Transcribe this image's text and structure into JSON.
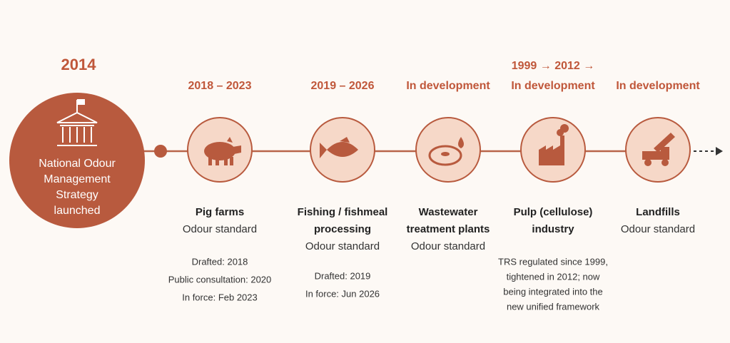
{
  "start": {
    "year": "2014",
    "label_lines": [
      "National Odour",
      "Management",
      "Strategy",
      "launched"
    ]
  },
  "stages": [
    {
      "period": "2018 – 2023",
      "title_lines": [
        "Pig farms"
      ],
      "subtitle": "Odour standard",
      "details": [
        "Drafted: 2018",
        "Public consultation: 2020",
        "In force: Feb 2023"
      ]
    },
    {
      "period": "2019 – 2026",
      "title_lines": [
        "Fishing / fishmeal",
        "processing"
      ],
      "subtitle": "Odour standard",
      "details": [
        "Drafted: 2019",
        "In force: Jun 2026"
      ]
    },
    {
      "period": "In development",
      "title_lines": [
        "Wastewater",
        "treatment plants"
      ],
      "subtitle": "Odour standard",
      "details": []
    },
    {
      "pre_period": "1999 → 2012 →",
      "period": "In development",
      "title_lines": [
        "Pulp (cellulose)",
        "industry"
      ],
      "details": [
        "TRS regulated since 1999,",
        "tightened in 2012; now",
        "being integrated into the",
        "new unified framework"
      ]
    },
    {
      "period": "In development",
      "title_lines": [
        "Landfills"
      ],
      "subtitle": "Odour standard",
      "details": []
    }
  ]
}
